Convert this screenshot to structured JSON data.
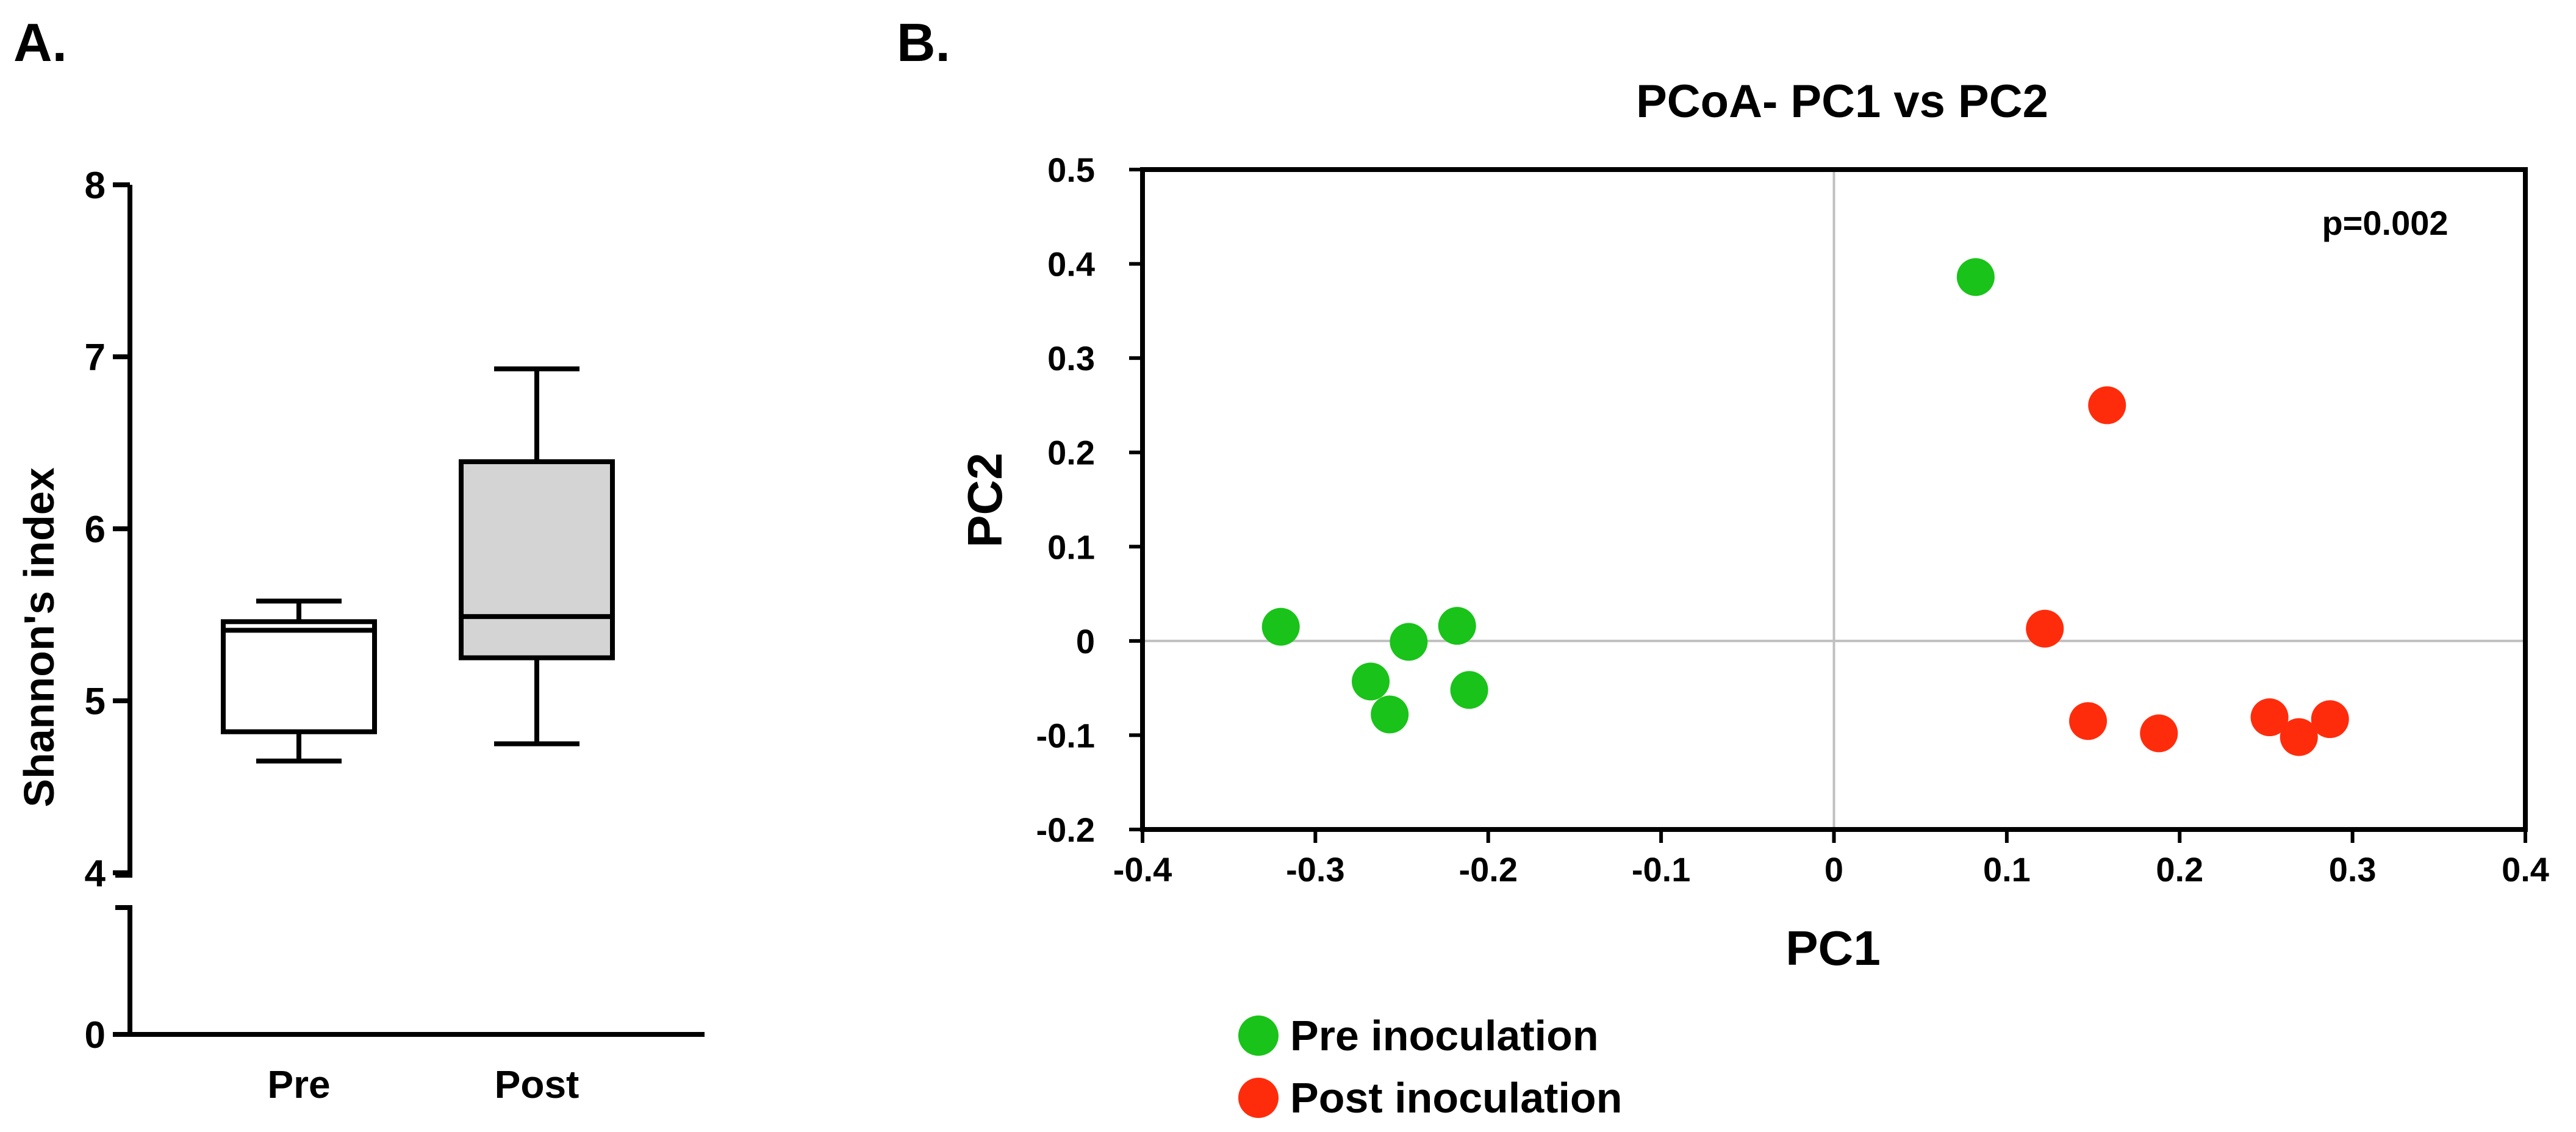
{
  "panels": {
    "a_label": "A.",
    "b_label": "B."
  },
  "chart_data": [
    {
      "type": "box",
      "panel": "A.",
      "title": "",
      "xlabel": "",
      "ylabel": "Shannon's index",
      "categories": [
        "Pre",
        "Post"
      ],
      "y_ticks": [
        "0",
        "4",
        "5",
        "6",
        "7",
        "8"
      ],
      "axis_break": true,
      "ylim_lower_segment": [
        0,
        1
      ],
      "ylim_upper_segment": [
        4,
        8
      ],
      "boxes": [
        {
          "category": "Pre",
          "min": 4.65,
          "q1": 4.82,
          "median": 5.41,
          "q3": 5.46,
          "max": 5.58,
          "fill": "#ffffff"
        },
        {
          "category": "Post",
          "min": 4.75,
          "q1": 5.25,
          "median": 5.49,
          "q3": 6.39,
          "max": 6.93,
          "fill": "#d4d4d4"
        }
      ]
    },
    {
      "type": "scatter",
      "panel": "B.",
      "title": "PCoA- PC1 vs PC2",
      "xlabel": "PC1",
      "ylabel": "PC2",
      "xlim": [
        -0.4,
        0.4
      ],
      "ylim": [
        -0.2,
        0.5
      ],
      "x_ticks": [
        "-0.4",
        "-0.3",
        "-0.2",
        "-0.1",
        "0",
        "0.1",
        "0.2",
        "0.3",
        "0.4"
      ],
      "y_ticks": [
        "-0.2",
        "-0.1",
        "0",
        "0.1",
        "0.2",
        "0.3",
        "0.4",
        "0.5"
      ],
      "annotation": "p=0.002",
      "zero_lines": true,
      "legend_position": "bottom-left",
      "series": [
        {
          "name": "Pre inoculation",
          "color": "#19c319",
          "points": [
            {
              "x": -0.32,
              "y": 0.015
            },
            {
              "x": -0.268,
              "y": -0.043
            },
            {
              "x": -0.257,
              "y": -0.078
            },
            {
              "x": -0.246,
              "y": -0.001
            },
            {
              "x": -0.218,
              "y": 0.016
            },
            {
              "x": -0.211,
              "y": -0.052
            },
            {
              "x": 0.082,
              "y": 0.386
            }
          ]
        },
        {
          "name": "Post inoculation",
          "color": "#ff2c0c",
          "points": [
            {
              "x": 0.158,
              "y": 0.25
            },
            {
              "x": 0.122,
              "y": 0.013
            },
            {
              "x": 0.147,
              "y": -0.085
            },
            {
              "x": 0.188,
              "y": -0.098
            },
            {
              "x": 0.252,
              "y": -0.081
            },
            {
              "x": 0.269,
              "y": -0.102
            },
            {
              "x": 0.287,
              "y": -0.083
            }
          ]
        }
      ]
    }
  ]
}
